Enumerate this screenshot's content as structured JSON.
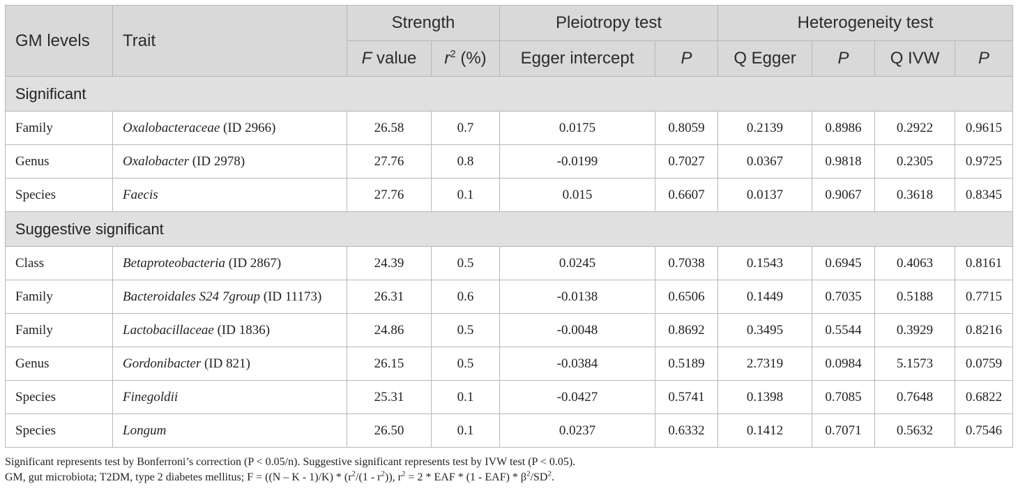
{
  "header": {
    "gm_levels": "GM levels",
    "trait": "Trait",
    "strength": "Strength",
    "pleiotropy": "Pleiotropy test",
    "heterogeneity": "Heterogeneity test",
    "f_value_italic": "F",
    "f_value_rest": " value",
    "r2_base": "r",
    "r2_sup": "2",
    "r2_rest": " (%)",
    "egger_intercept": "Egger intercept",
    "p1": "P",
    "q_egger": "Q Egger",
    "p2": "P",
    "q_ivw": "Q IVW",
    "p3": "P"
  },
  "sections": [
    {
      "title": "Significant",
      "rows": [
        {
          "level": "Family",
          "trait": "Oxalobacteraceae",
          "trait_id": " (ID 2966)",
          "f": "26.58",
          "r2": "0.7",
          "egger": "0.0175",
          "p_egger": "0.8059",
          "q_egger": "0.2139",
          "p_q_egger": "0.8986",
          "q_ivw": "0.2922",
          "p_q_ivw": "0.9615"
        },
        {
          "level": "Genus",
          "trait": "Oxalobacter",
          "trait_id": " (ID 2978)",
          "f": "27.76",
          "r2": "0.8",
          "egger": "-0.0199",
          "p_egger": "0.7027",
          "q_egger": "0.0367",
          "p_q_egger": "0.9818",
          "q_ivw": "0.2305",
          "p_q_ivw": "0.9725"
        },
        {
          "level": "Species",
          "trait": "Faecis",
          "trait_id": "",
          "f": "27.76",
          "r2": "0.1",
          "egger": "0.015",
          "p_egger": "0.6607",
          "q_egger": "0.0137",
          "p_q_egger": "0.9067",
          "q_ivw": "0.3618",
          "p_q_ivw": "0.8345"
        }
      ]
    },
    {
      "title": "Suggestive significant",
      "rows": [
        {
          "level": "Class",
          "trait": "Betaproteobacteria",
          "trait_id": " (ID 2867)",
          "f": "24.39",
          "r2": "0.5",
          "egger": "0.0245",
          "p_egger": "0.7038",
          "q_egger": "0.1543",
          "p_q_egger": "0.6945",
          "q_ivw": "0.4063",
          "p_q_ivw": "0.8161"
        },
        {
          "level": "Family",
          "trait": "Bacteroidales S24 7group",
          "trait_id": " (ID 11173)",
          "f": "26.31",
          "r2": "0.6",
          "egger": "-0.0138",
          "p_egger": "0.6506",
          "q_egger": "0.1449",
          "p_q_egger": "0.7035",
          "q_ivw": "0.5188",
          "p_q_ivw": "0.7715"
        },
        {
          "level": "Family",
          "trait": "Lactobacillaceae",
          "trait_id": " (ID 1836)",
          "f": "24.86",
          "r2": "0.5",
          "egger": "-0.0048",
          "p_egger": "0.8692",
          "q_egger": "0.3495",
          "p_q_egger": "0.5544",
          "q_ivw": "0.3929",
          "p_q_ivw": "0.8216"
        },
        {
          "level": "Genus",
          "trait": "Gordonibacter",
          "trait_id": " (ID 821)",
          "f": "26.15",
          "r2": "0.5",
          "egger": "-0.0384",
          "p_egger": "0.5189",
          "q_egger": "2.7319",
          "p_q_egger": "0.0984",
          "q_ivw": "5.1573",
          "p_q_ivw": "0.0759"
        },
        {
          "level": "Species",
          "trait": "Finegoldii",
          "trait_id": "",
          "f": "25.31",
          "r2": "0.1",
          "egger": "-0.0427",
          "p_egger": "0.5741",
          "q_egger": "0.1398",
          "p_q_egger": "0.7085",
          "q_ivw": "0.7648",
          "p_q_ivw": "0.6822"
        },
        {
          "level": "Species",
          "trait": "Longum",
          "trait_id": "",
          "f": "26.50",
          "r2": "0.1",
          "egger": "0.0237",
          "p_egger": "0.6332",
          "q_egger": "0.1412",
          "p_q_egger": "0.7071",
          "q_ivw": "0.5632",
          "p_q_ivw": "0.7546"
        }
      ]
    }
  ],
  "notes": {
    "line1": "Significant represents test by Bonferroni’s correction (P < 0.05/n). Suggestive significant represents test by IVW test (P < 0.05).",
    "line2_a": "GM, gut microbiota; T2DM, type 2 diabetes mellitus; F = ((N – K - 1)/K) * (r",
    "line2_sup1": "2",
    "line2_b": "/(1 - r",
    "line2_sup2": "2",
    "line2_c": ")), r",
    "line2_sup3": "2",
    "line2_d": " = 2 * EAF * (1 - EAF) * β",
    "line2_sup4": "2",
    "line2_e": "/SD",
    "line2_sup5": "2",
    "line2_f": "."
  }
}
